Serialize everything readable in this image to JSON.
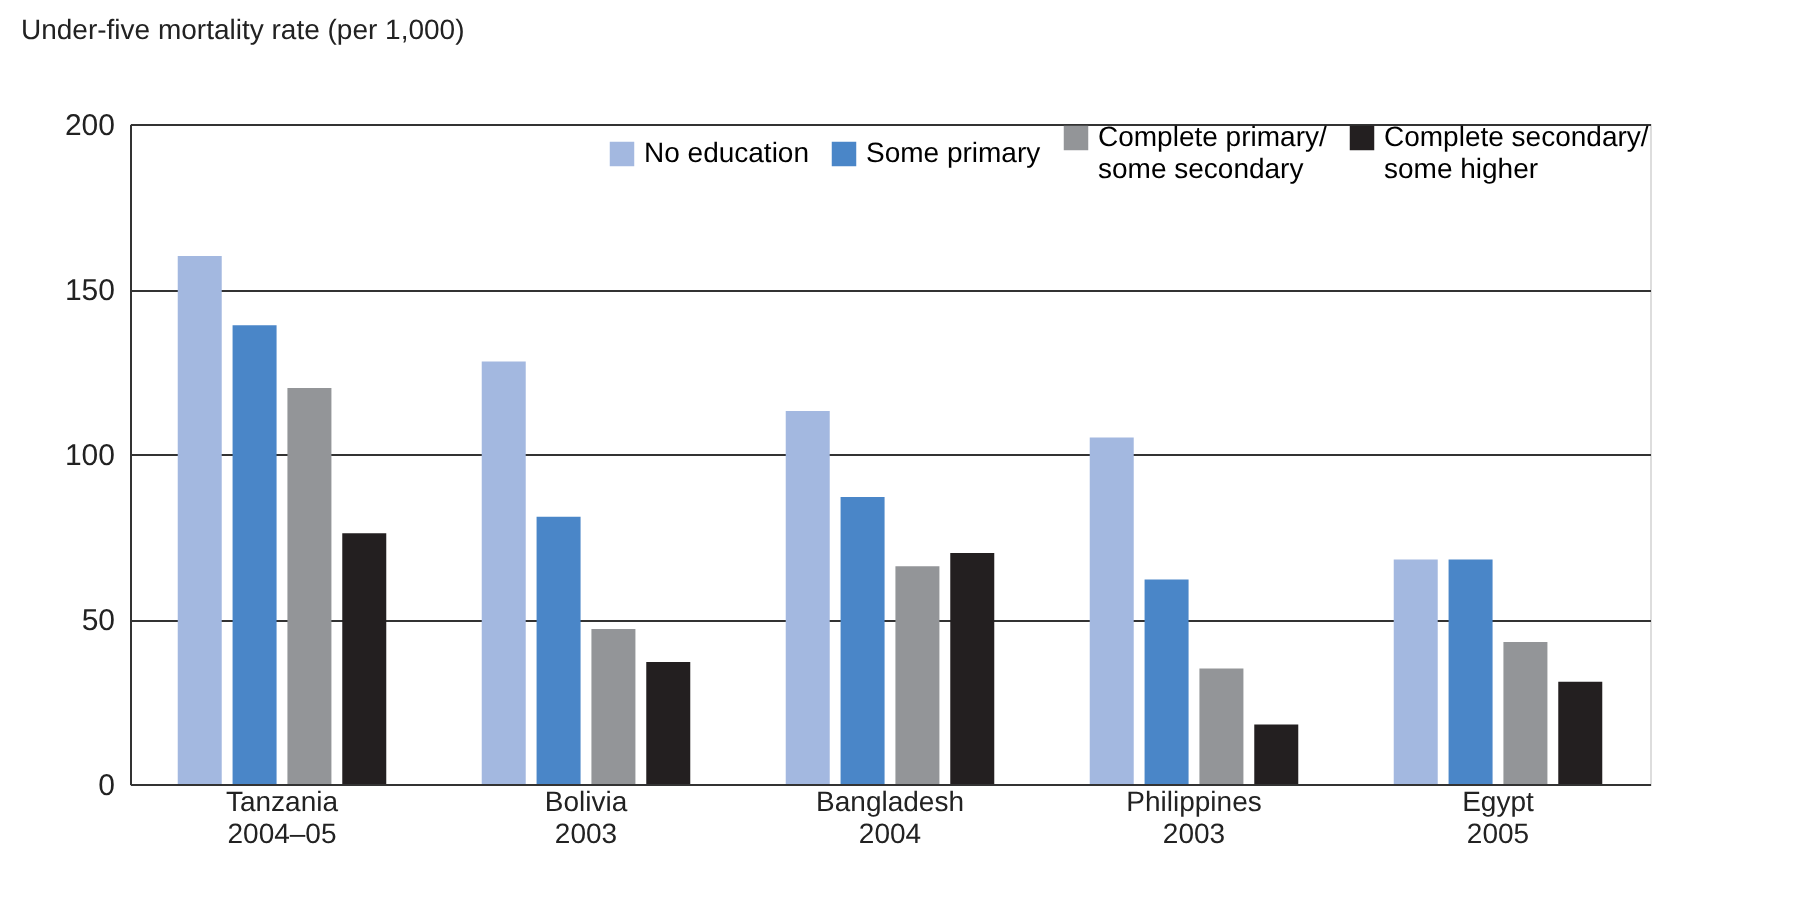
{
  "chart_data": {
    "type": "bar",
    "ylabel": "Under-five mortality rate (per 1,000)",
    "categories": [
      "Tanzania\n2004–05",
      "Bolivia\n2003",
      "Bangladesh\n2004",
      "Philippines\n2003",
      "Egypt\n2005"
    ],
    "series": [
      {
        "name": "No education",
        "color": "#a3b8e0",
        "values": [
          160,
          128,
          113,
          105,
          68
        ]
      },
      {
        "name": "Some primary",
        "color": "#4a86c8",
        "values": [
          139,
          81,
          87,
          62,
          68
        ]
      },
      {
        "name": "Complete primary/\nsome secondary",
        "color": "#939598",
        "values": [
          120,
          47,
          66,
          35,
          43
        ]
      },
      {
        "name": "Complete secondary/\nsome higher",
        "color": "#231f20",
        "values": [
          76,
          37,
          70,
          18,
          31
        ]
      }
    ],
    "ylim": [
      0,
      200
    ],
    "yticks": [
      0,
      50,
      100,
      150,
      200
    ],
    "grid": "y",
    "legend": "top right"
  }
}
